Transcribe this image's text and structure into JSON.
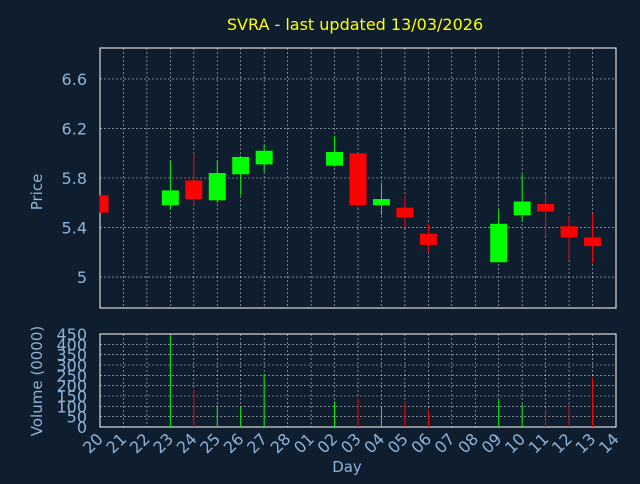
{
  "chart_data": [
    {
      "type": "candlestick",
      "title": "SVRA - last updated 13/03/2026",
      "ylabel": "Price",
      "ylim": [
        4.75,
        6.85
      ],
      "yticks": [
        5,
        5.4,
        5.8,
        6.2,
        6.6
      ],
      "ytick_labels": [
        "5",
        "5.4",
        "5.8",
        "6.2",
        "6.6"
      ],
      "grid": true,
      "colors": {
        "up": "#00ff00",
        "down": "#ff0000"
      },
      "candles": [
        {
          "day": "20",
          "open": 5.66,
          "high": 5.66,
          "low": 5.52,
          "close": 5.52
        },
        {
          "day": "23",
          "open": 5.58,
          "high": 5.94,
          "low": 5.55,
          "close": 5.7
        },
        {
          "day": "24",
          "open": 5.78,
          "high": 6.0,
          "low": 5.58,
          "close": 5.63
        },
        {
          "day": "25",
          "open": 5.62,
          "high": 5.94,
          "low": 5.6,
          "close": 5.84
        },
        {
          "day": "26",
          "open": 5.83,
          "high": 5.98,
          "low": 5.66,
          "close": 5.97
        },
        {
          "day": "27",
          "open": 5.91,
          "high": 6.07,
          "low": 5.85,
          "close": 6.02
        },
        {
          "day": "02",
          "open": 5.9,
          "high": 6.14,
          "low": 5.89,
          "close": 6.01
        },
        {
          "day": "03",
          "open": 6.0,
          "high": 6.0,
          "low": 5.56,
          "close": 5.58
        },
        {
          "day": "04",
          "open": 5.58,
          "high": 5.76,
          "low": 5.5,
          "close": 5.63
        },
        {
          "day": "05",
          "open": 5.56,
          "high": 5.65,
          "low": 5.4,
          "close": 5.48
        },
        {
          "day": "06",
          "open": 5.35,
          "high": 5.43,
          "low": 5.2,
          "close": 5.26
        },
        {
          "day": "09",
          "open": 5.12,
          "high": 5.55,
          "low": 5.12,
          "close": 5.43
        },
        {
          "day": "10",
          "open": 5.5,
          "high": 5.83,
          "low": 5.45,
          "close": 5.61
        },
        {
          "day": "11",
          "open": 5.59,
          "high": 5.67,
          "low": 5.33,
          "close": 5.53
        },
        {
          "day": "12",
          "open": 5.41,
          "high": 5.49,
          "low": 5.14,
          "close": 5.32
        },
        {
          "day": "13",
          "open": 5.32,
          "high": 5.51,
          "low": 5.11,
          "close": 5.25
        }
      ]
    },
    {
      "type": "bar",
      "ylabel": "Volume (0000)",
      "xlabel": "Day",
      "ylim": [
        0,
        450
      ],
      "yticks": [
        0,
        50,
        100,
        150,
        200,
        250,
        300,
        350,
        400,
        450
      ],
      "ytick_labels": [
        "0",
        "50",
        "100",
        "150",
        "200",
        "250",
        "300",
        "350",
        "400",
        "450"
      ],
      "categories": [
        "20",
        "21",
        "22",
        "23",
        "24",
        "25",
        "26",
        "27",
        "28",
        "01",
        "02",
        "03",
        "04",
        "05",
        "06",
        "07",
        "08",
        "09",
        "10",
        "11",
        "12",
        "13",
        "14"
      ],
      "bars": [
        {
          "day": "23",
          "value": 440,
          "color": "#00ff00"
        },
        {
          "day": "24",
          "value": 180,
          "color": "#ff0000"
        },
        {
          "day": "25",
          "value": 105,
          "color": "#00ff00"
        },
        {
          "day": "26",
          "value": 95,
          "color": "#00ff00"
        },
        {
          "day": "27",
          "value": 255,
          "color": "#00ff00"
        },
        {
          "day": "02",
          "value": 125,
          "color": "#00ff00"
        },
        {
          "day": "03",
          "value": 140,
          "color": "#ff0000"
        },
        {
          "day": "04",
          "value": 100,
          "color": "#00ff00"
        },
        {
          "day": "05",
          "value": 125,
          "color": "#ff0000"
        },
        {
          "day": "06",
          "value": 85,
          "color": "#ff0000"
        },
        {
          "day": "09",
          "value": 130,
          "color": "#00ff00"
        },
        {
          "day": "10",
          "value": 110,
          "color": "#00ff00"
        },
        {
          "day": "11",
          "value": 85,
          "color": "#ff0000"
        },
        {
          "day": "12",
          "value": 110,
          "color": "#ff0000"
        },
        {
          "day": "13",
          "value": 240,
          "color": "#ff0000"
        }
      ]
    }
  ],
  "colors": {
    "background": "#0f1e2e",
    "title": "#ffff00",
    "axis_text": "#8fb3d6",
    "axis_line": "#ffffff",
    "grid": "#ffffff"
  }
}
